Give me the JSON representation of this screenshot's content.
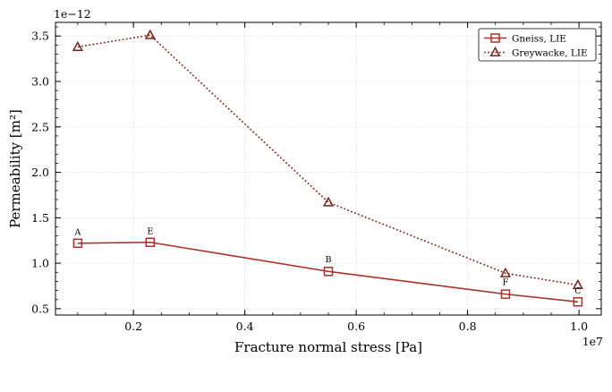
{
  "chart_data": {
    "type": "line",
    "title": "",
    "xlabel": "Fracture normal stress [Pa]",
    "ylabel": "Permeability [m²]",
    "x_offset_label": "1e7",
    "y_offset_label": "1e−12",
    "xlim": [
      0.06,
      1.04
    ],
    "ylim": [
      0.43,
      3.65
    ],
    "x_unit_scale": 10000000,
    "y_unit_scale": 1e-12,
    "x_ticks": [
      0.2,
      0.4,
      0.6,
      0.8,
      1.0
    ],
    "x_tick_labels": [
      "0.2",
      "0.4",
      "0.6",
      "0.8",
      "1.0"
    ],
    "y_ticks": [
      0.5,
      1.0,
      1.5,
      2.0,
      2.5,
      3.0,
      3.5
    ],
    "y_tick_labels": [
      "0.5",
      "1.0",
      "1.5",
      "2.0",
      "2.5",
      "3.0",
      "3.5"
    ],
    "grid": true,
    "legend_position": "top-right",
    "series": [
      {
        "name": "Gneiss, LIE",
        "marker": "square",
        "linestyle": "solid",
        "color": "#a93226",
        "x": [
          0.1,
          0.23,
          0.55,
          0.868,
          0.998
        ],
        "y": [
          1.22,
          1.23,
          0.91,
          0.66,
          0.575
        ]
      },
      {
        "name": "Greywacke, LIE",
        "marker": "triangle",
        "linestyle": "dotted",
        "color": "#7b2418",
        "x": [
          0.1,
          0.23,
          0.55,
          0.868,
          0.998
        ],
        "y": [
          3.38,
          3.51,
          1.67,
          0.89,
          0.76
        ]
      }
    ],
    "annotations": [
      {
        "text": "A",
        "x": 0.1,
        "y": 1.31
      },
      {
        "text": "E",
        "x": 0.23,
        "y": 1.32
      },
      {
        "text": "B",
        "x": 0.55,
        "y": 1.01
      },
      {
        "text": "F",
        "x": 0.868,
        "y": 0.76
      },
      {
        "text": "C",
        "x": 0.998,
        "y": 0.665
      }
    ]
  }
}
